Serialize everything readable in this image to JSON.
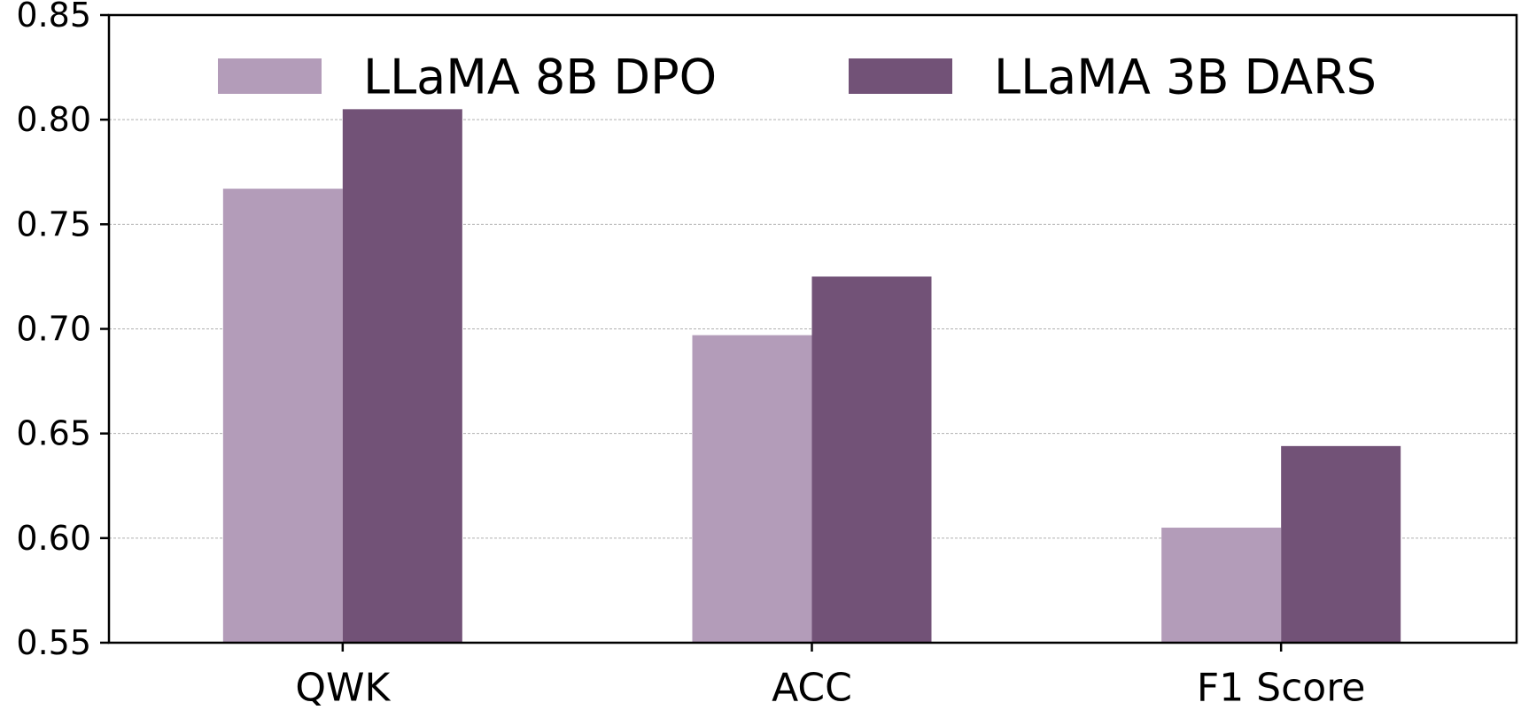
{
  "chart_data": {
    "type": "bar",
    "title": "",
    "xlabel": "",
    "ylabel": "",
    "categories": [
      "QWK",
      "ACC",
      "F1 Score"
    ],
    "series": [
      {
        "name": "LLaMA 8B DPO",
        "color": "#b39cb9",
        "values": [
          0.767,
          0.697,
          0.605
        ]
      },
      {
        "name": "LLaMA 3B DARS",
        "color": "#725277",
        "values": [
          0.805,
          0.725,
          0.644
        ]
      }
    ],
    "ylim": [
      0.55,
      0.85
    ],
    "yticks": [
      "0.55",
      "0.60",
      "0.65",
      "0.70",
      "0.75",
      "0.80",
      "0.85"
    ],
    "grid": "horizontal dashed",
    "legend_position": "top"
  }
}
